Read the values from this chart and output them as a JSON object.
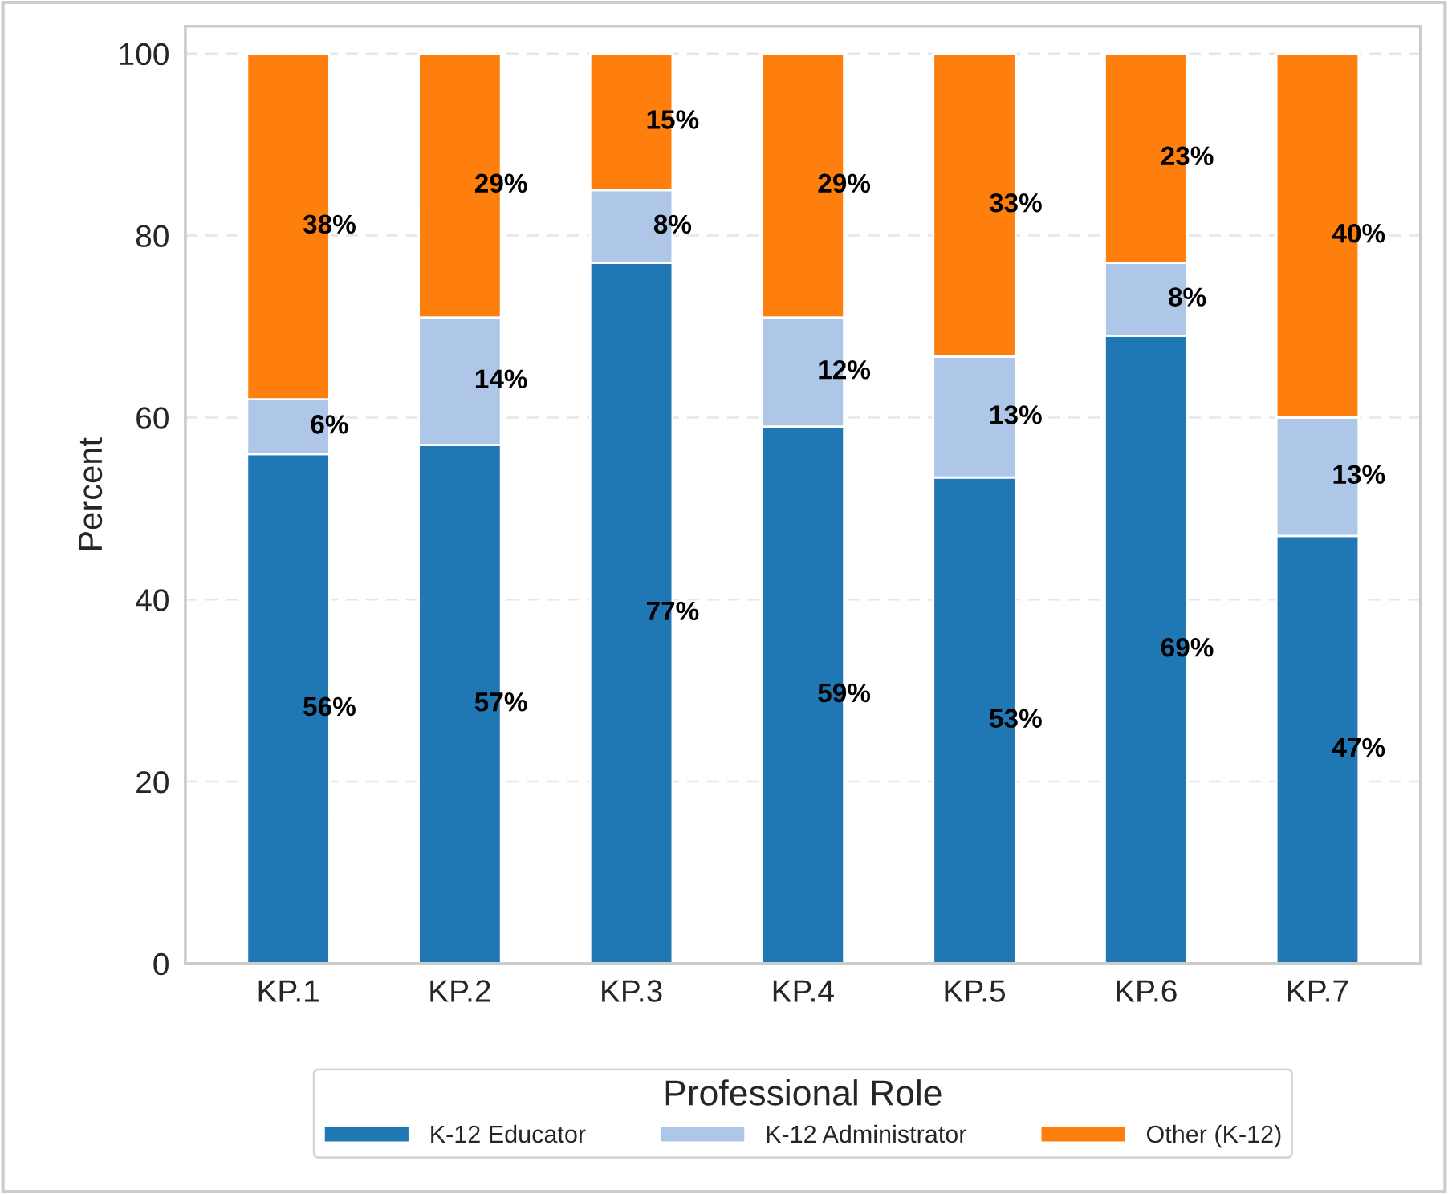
{
  "chart_data": {
    "type": "bar",
    "stacked": true,
    "ylabel": "Percent",
    "legend_title": "Professional Role",
    "categories": [
      "KP.1",
      "KP.2",
      "KP.3",
      "KP.4",
      "KP.5",
      "KP.6",
      "KP.7"
    ],
    "series": [
      {
        "name": "K-12 Educator",
        "color": "#1f77b4",
        "values": [
          56,
          57,
          77,
          59,
          53.4,
          69,
          47
        ],
        "value_labels": [
          "56%",
          "57%",
          "77%",
          "59%",
          "53%",
          "69%",
          "47%"
        ]
      },
      {
        "name": "K-12 Administrator",
        "color": "#aec7e8",
        "values": [
          6,
          14,
          8,
          12,
          13.3,
          8,
          13
        ],
        "value_labels": [
          "6%",
          "14%",
          "8%",
          "12%",
          "13%",
          "8%",
          "13%"
        ]
      },
      {
        "name": "Other (K-12)",
        "color": "#ff7f0e",
        "values": [
          38,
          29,
          15,
          29,
          33.3,
          23,
          40
        ],
        "value_labels": [
          "38%",
          "29%",
          "15%",
          "29%",
          "33%",
          "23%",
          "40%"
        ]
      }
    ],
    "ylim": [
      0,
      103
    ],
    "yticks": [
      0,
      20,
      40,
      60,
      80,
      100
    ],
    "grid": "y",
    "legend": "bottom"
  }
}
